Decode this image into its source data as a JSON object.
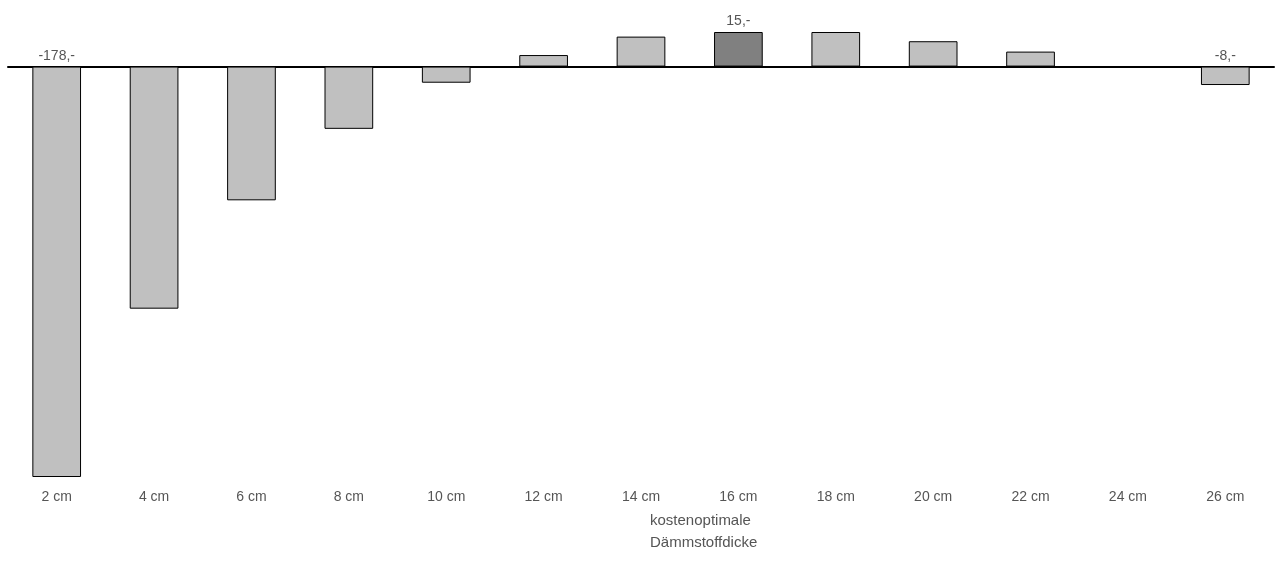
{
  "chart_data": {
    "type": "bar",
    "categories": [
      "2 cm",
      "4 cm",
      "6 cm",
      "8 cm",
      "10 cm",
      "12 cm",
      "14 cm",
      "16 cm",
      "18 cm",
      "20 cm",
      "22 cm",
      "24 cm",
      "26 cm"
    ],
    "values": [
      -178,
      -105,
      -58,
      -27,
      -7,
      5,
      13,
      15,
      15,
      11,
      6.5,
      0,
      -8
    ],
    "colors": [
      "#c0c0c0",
      "#c0c0c0",
      "#c0c0c0",
      "#c0c0c0",
      "#c0c0c0",
      "#c0c0c0",
      "#c0c0c0",
      "#808080",
      "#c0c0c0",
      "#c0c0c0",
      "#c0c0c0",
      "#c0c0c0",
      "#c0c0c0"
    ],
    "value_labels": [
      "-178,-",
      null,
      null,
      null,
      null,
      null,
      null,
      "15,-",
      null,
      null,
      null,
      null,
      "-8,-"
    ],
    "annotations": [
      "kostenoptimale Dämmstoffdicke"
    ]
  }
}
